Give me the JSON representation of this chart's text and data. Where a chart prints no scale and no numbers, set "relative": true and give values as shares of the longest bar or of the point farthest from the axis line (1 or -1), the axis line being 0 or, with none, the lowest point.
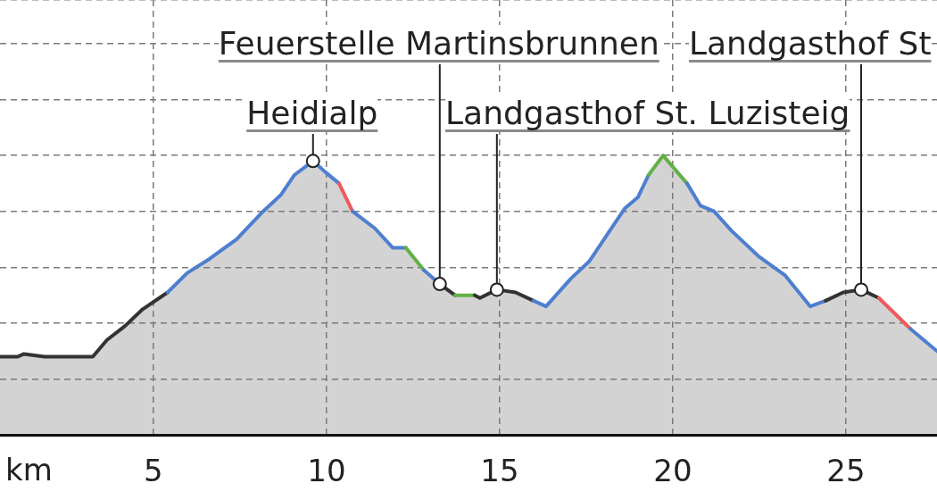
{
  "chart_data": {
    "type": "area",
    "relative": true,
    "xlabel": "km",
    "x": [
      0.57,
      1.08,
      1.26,
      1.86,
      2.78,
      2.94,
      3.25,
      3.66,
      4.18,
      4.69,
      5.41,
      5.98,
      6.62,
      7.4,
      8.17,
      8.69,
      9.07,
      9.61,
      9.97,
      10.36,
      10.75,
      11.39,
      11.91,
      12.29,
      12.81,
      13.27,
      13.71,
      14.28,
      14.43,
      14.92,
      15.46,
      15.98,
      16.34,
      17.06,
      17.58,
      18.61,
      18.99,
      19.3,
      19.72,
      20.41,
      20.8,
      21.19,
      21.7,
      22.47,
      23.25,
      23.97,
      24.41,
      24.92,
      25.44,
      25.95,
      26.86,
      27.63
    ],
    "xlim": [
      0.57,
      27.63
    ],
    "xticks": [
      5,
      10,
      15,
      20,
      25
    ],
    "series": [
      {
        "color": "#d3d3d3",
        "colors": [
          "#333333",
          "#333333",
          "#333333",
          "#333333",
          "#333333",
          "#333333",
          "#333333",
          "#333333",
          "#333333",
          "#333333",
          "#4e7fcf",
          "#4e7fcf",
          "#4e7fcf",
          "#4e7fcf",
          "#4e7fcf",
          "#4e7fcf",
          "#4e7fcf",
          "#4e7fcf",
          "#4e7fcf",
          "#f05a5a",
          "#4e7fcf",
          "#4e7fcf",
          "#4e7fcf",
          "#62b046",
          "#4e7fcf",
          "#333333",
          "#62b046",
          "#333333",
          "#333333",
          "#333333",
          "#333333",
          "#4e7fcf",
          "#4e7fcf",
          "#4e7fcf",
          "#4e7fcf",
          "#4e7fcf",
          "#4e7fcf",
          "#62b046",
          "#62b046",
          "#4e7fcf",
          "#4e7fcf",
          "#4e7fcf",
          "#4e7fcf",
          "#4e7fcf",
          "#4e7fcf",
          "#4e7fcf",
          "#333333",
          "#333333",
          "#333333",
          "#f05a5a",
          "#4e7fcf",
          "#4e7fcf"
        ],
        "values": [
          0.28,
          0.28,
          0.29,
          0.28,
          0.28,
          0.28,
          0.28,
          0.34,
          0.39,
          0.45,
          0.51,
          0.58,
          0.63,
          0.7,
          0.8,
          0.86,
          0.93,
          0.98,
          0.94,
          0.9,
          0.8,
          0.74,
          0.67,
          0.67,
          0.59,
          0.54,
          0.5,
          0.5,
          0.49,
          0.52,
          0.51,
          0.48,
          0.46,
          0.56,
          0.62,
          0.81,
          0.85,
          0.93,
          1,
          0.9,
          0.82,
          0.8,
          0.73,
          0.64,
          0.57,
          0.46,
          0.48,
          0.51,
          0.52,
          0.49,
          0.38,
          0.3
        ]
      }
    ],
    "annotations": [
      {
        "text": "Heidialp",
        "x": 9.61,
        "y": 0.98
      },
      {
        "text": "Feuerstelle Martinsbrunnen",
        "x": 13.27,
        "y": 0.54
      },
      {
        "text": "Landgasthof St. Luzisteig",
        "x": 14.92,
        "y": 0.52
      },
      {
        "text": "Landgasthof St",
        "x": 25.44,
        "y": 0.52
      }
    ],
    "grid": true,
    "legend": false,
    "marker": "none"
  }
}
